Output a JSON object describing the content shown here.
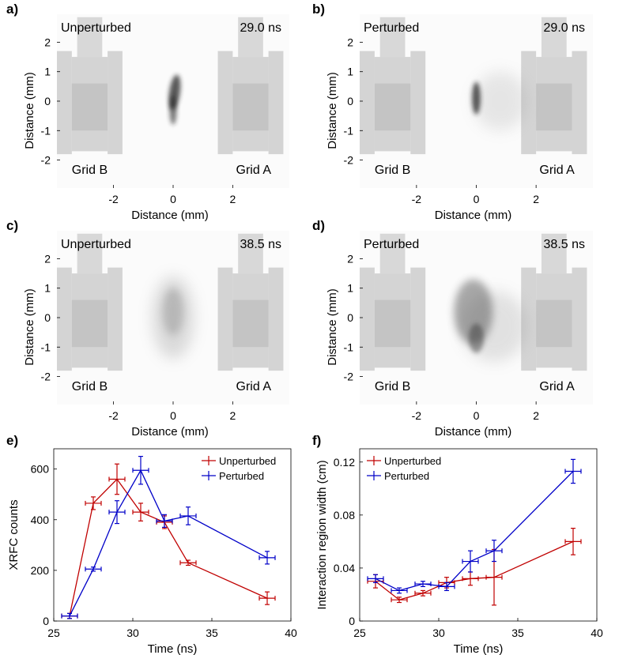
{
  "colors": {
    "unperturbed": "#c00000",
    "perturbed": "#0000c8",
    "grid_fill": "#d4d4d4",
    "grid_dark": "#c4c4c4",
    "plasma": "#202020"
  },
  "panels": [
    {
      "label": "a)",
      "condition": "Unperturbed",
      "time": "29.0 ns",
      "grid_left": "Grid B",
      "grid_right": "Grid A",
      "plasma": "narrow"
    },
    {
      "label": "b)",
      "condition": "Perturbed",
      "time": "29.0 ns",
      "grid_left": "Grid B",
      "grid_right": "Grid A",
      "plasma": "narrow-spread"
    },
    {
      "label": "c)",
      "condition": "Unperturbed",
      "time": "38.5 ns",
      "grid_left": "Grid B",
      "grid_right": "Grid A",
      "plasma": "faint-wide"
    },
    {
      "label": "d)",
      "condition": "Perturbed",
      "time": "38.5 ns",
      "grid_left": "Grid B",
      "grid_right": "Grid A",
      "plasma": "dark-wide"
    }
  ],
  "image_axes": {
    "xlabel": "Distance (mm)",
    "ylabel": "Distance (mm)",
    "xticks": [
      "-2",
      "0",
      "2"
    ],
    "yticks": [
      "2",
      "1",
      "0",
      "-1",
      "-2"
    ],
    "xrange": [
      -3.9,
      3.9
    ],
    "yrange": [
      -2.95,
      2.95
    ]
  },
  "chart_data": [
    {
      "type": "line",
      "panel": "e)",
      "xlabel": "Time (ns)",
      "ylabel": "XRFC counts",
      "xlim": [
        25,
        40
      ],
      "ylim": [
        0,
        680
      ],
      "xticks": [
        "25",
        "30",
        "35",
        "40"
      ],
      "yticks": [
        "0",
        "200",
        "400",
        "600"
      ],
      "legend_position": "top-right",
      "series": [
        {
          "name": "Unperturbed",
          "color": "#c00000",
          "x": [
            26,
            27.5,
            29,
            30.5,
            32,
            33.5,
            38.5
          ],
          "y": [
            20,
            465,
            560,
            430,
            390,
            230,
            90
          ],
          "xerr": [
            0.5,
            0.5,
            0.5,
            0.5,
            0.5,
            0.5,
            0.5
          ],
          "yerr": [
            10,
            25,
            60,
            35,
            25,
            10,
            25
          ]
        },
        {
          "name": "Perturbed",
          "color": "#0000c8",
          "x": [
            26,
            27.5,
            29,
            30.5,
            32,
            33.5,
            38.5
          ],
          "y": [
            20,
            205,
            430,
            595,
            395,
            415,
            250
          ],
          "xerr": [
            0.5,
            0.5,
            0.5,
            0.5,
            0.5,
            0.5,
            0.5
          ],
          "yerr": [
            10,
            8,
            45,
            55,
            25,
            35,
            25
          ]
        }
      ]
    },
    {
      "type": "line",
      "panel": "f)",
      "xlabel": "Time (ns)",
      "ylabel": "Interaction region width (cm)",
      "xlim": [
        25,
        40
      ],
      "ylim": [
        0,
        0.13
      ],
      "xticks": [
        "25",
        "30",
        "35",
        "40"
      ],
      "yticks": [
        "0",
        "0.04",
        "0.08",
        "0.12"
      ],
      "legend_position": "top-left",
      "series": [
        {
          "name": "Unperturbed",
          "color": "#c00000",
          "x": [
            26,
            27.5,
            29,
            30.5,
            32,
            33.5,
            38.5
          ],
          "y": [
            0.03,
            0.016,
            0.021,
            0.029,
            0.032,
            0.033,
            0.06
          ],
          "xerr": [
            0.5,
            0.5,
            0.5,
            0.5,
            0.5,
            0.5,
            0.5
          ],
          "yerr": [
            0.005,
            0.002,
            0.002,
            0.004,
            0.005,
            0.021,
            0.01
          ]
        },
        {
          "name": "Perturbed",
          "color": "#0000c8",
          "x": [
            26,
            27.5,
            29,
            30.5,
            32,
            33.5,
            38.5
          ],
          "y": [
            0.032,
            0.023,
            0.028,
            0.026,
            0.045,
            0.053,
            0.113
          ],
          "xerr": [
            0.5,
            0.5,
            0.5,
            0.5,
            0.5,
            0.5,
            0.5
          ],
          "yerr": [
            0.003,
            0.002,
            0.002,
            0.003,
            0.008,
            0.008,
            0.009
          ]
        }
      ]
    }
  ]
}
